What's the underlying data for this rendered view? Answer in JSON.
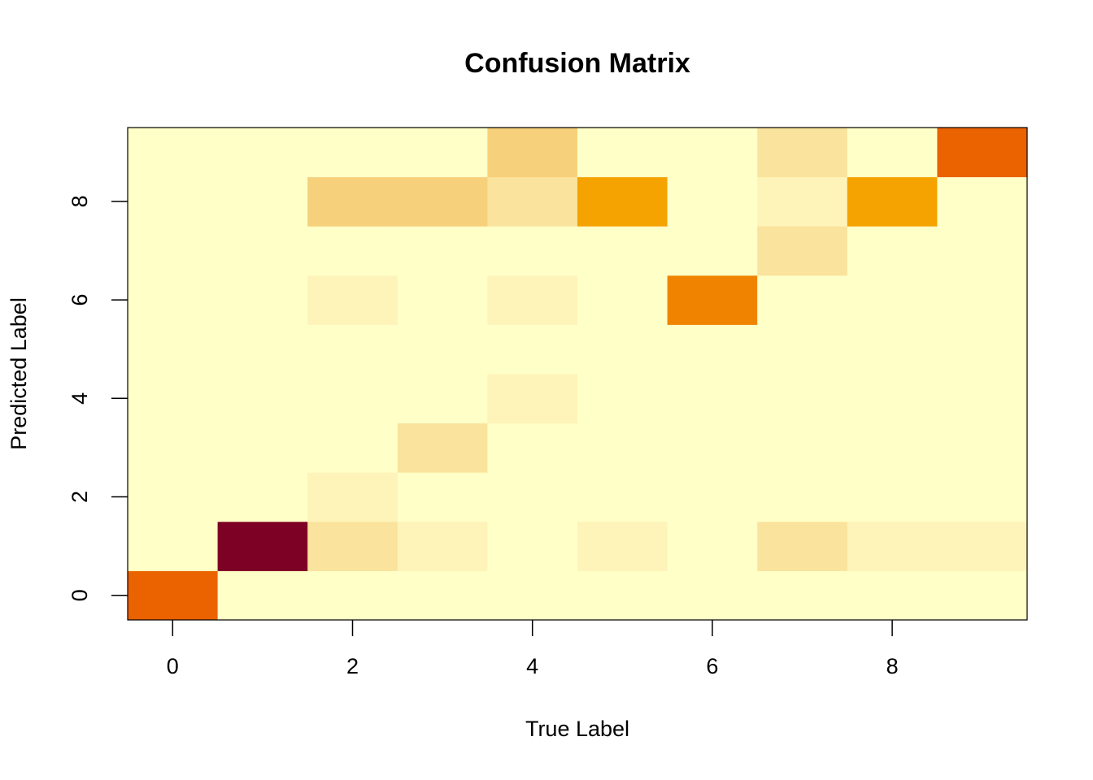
{
  "chart_data": {
    "type": "heatmap",
    "title": "Confusion Matrix",
    "x_label": "True Label",
    "y_label": "Predicted Label",
    "x": [
      0,
      1,
      2,
      3,
      4,
      5,
      6,
      7,
      8,
      9
    ],
    "y": [
      0,
      1,
      2,
      3,
      4,
      5,
      6,
      7,
      8,
      9
    ],
    "values": [
      [
        8,
        0,
        0,
        0,
        0,
        0,
        0,
        0,
        0,
        0
      ],
      [
        0,
        12,
        2,
        1,
        0,
        1,
        0,
        2,
        1,
        1
      ],
      [
        0,
        0,
        1,
        0,
        0,
        0,
        0,
        0,
        0,
        0
      ],
      [
        0,
        0,
        0,
        2,
        0,
        0,
        0,
        0,
        0,
        0
      ],
      [
        0,
        0,
        0,
        0,
        1,
        0,
        0,
        0,
        0,
        0
      ],
      [
        0,
        0,
        0,
        0,
        0,
        0,
        0,
        0,
        0,
        0
      ],
      [
        0,
        0,
        1,
        0,
        1,
        0,
        7,
        0,
        0,
        0
      ],
      [
        0,
        0,
        0,
        0,
        0,
        0,
        0,
        2,
        0,
        0
      ],
      [
        0,
        0,
        3,
        3,
        2,
        6,
        0,
        1,
        6,
        0
      ],
      [
        0,
        0,
        0,
        0,
        3,
        0,
        0,
        2,
        0,
        8
      ]
    ],
    "zlim": [
      0,
      12
    ],
    "colors": [
      "#FFFFC8",
      "#FEF3B9",
      "#FAE39C",
      "#F6D07A",
      "#F5BE50",
      "#F4AE20",
      "#F4A300",
      "#F08400",
      "#EB6200",
      "#D94400",
      "#BE2A10",
      "#9E1020",
      "#7D0025"
    ],
    "xlim": [
      -0.5,
      9.5
    ],
    "ylim": [
      -0.5,
      9.5
    ],
    "xticks": [
      0,
      2,
      4,
      6,
      8
    ],
    "yticks": [
      0,
      2,
      4,
      6,
      8
    ]
  }
}
